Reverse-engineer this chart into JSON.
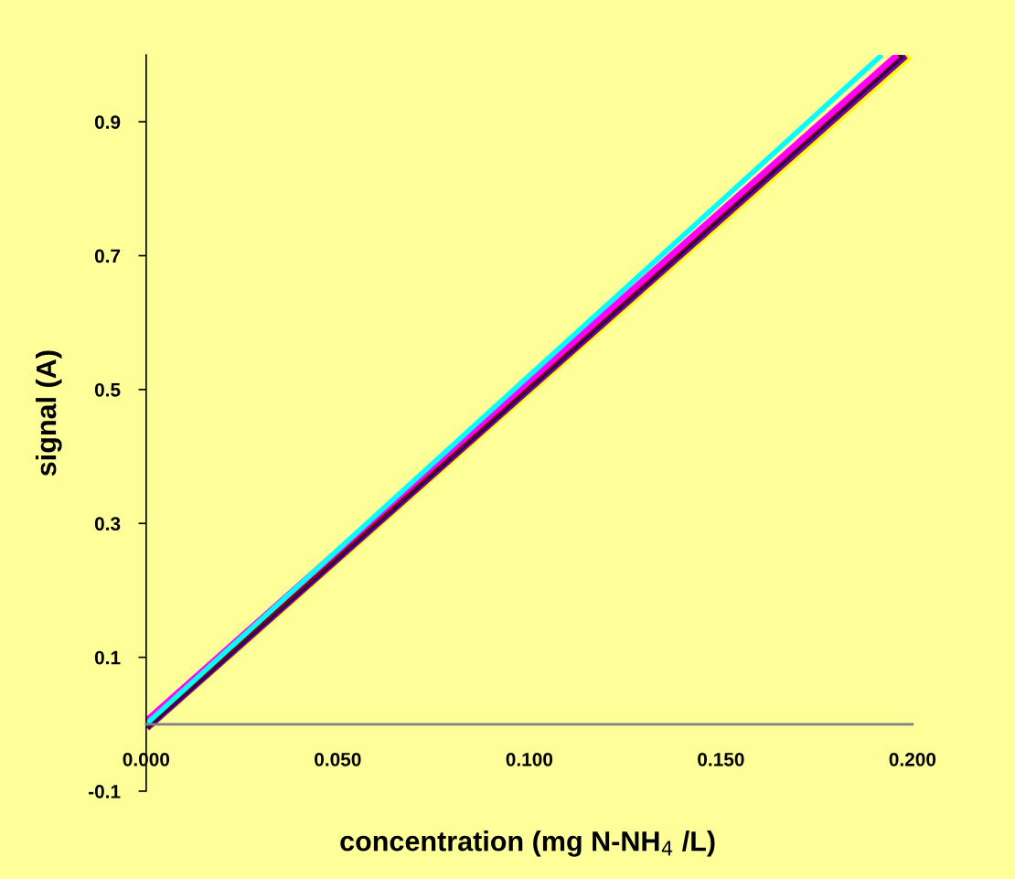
{
  "chart_data": {
    "type": "line",
    "xlabel": "concentration (mg N-NH$_{4}$ /L)",
    "ylabel": "signal (A)",
    "xlim": [
      0,
      0.2
    ],
    "ylim": [
      -0.1,
      1.0
    ],
    "xticks": [
      {
        "value": 0,
        "label": "0.000"
      },
      {
        "value": 0.05,
        "label": "0.050"
      },
      {
        "value": 0.1,
        "label": "0.100"
      },
      {
        "value": 0.15,
        "label": "0.150"
      },
      {
        "value": 0.2,
        "label": "0.200"
      }
    ],
    "yticks": [
      -0.1,
      0.1,
      0.3,
      0.5,
      0.7,
      0.9
    ],
    "grid": false,
    "marker": "none",
    "line_style": "solid",
    "series": [
      {
        "color": "#ffff00",
        "x": [
          0,
          0.199
        ],
        "values": [
          -0.004,
          1.0
        ]
      },
      {
        "color": "#800080",
        "x": [
          0,
          0.198
        ],
        "values": [
          -0.004,
          1.0
        ]
      },
      {
        "color": "#000080",
        "x": [
          0,
          0.197
        ],
        "values": [
          -0.002,
          1.0
        ]
      },
      {
        "color": "#800000",
        "x": [
          0,
          0.1965
        ],
        "values": [
          0.0,
          1.0
        ]
      },
      {
        "color": "#ff00ff",
        "x": [
          0,
          0.196
        ],
        "values": [
          0.005,
          1.0
        ]
      },
      {
        "color": "#00ffff",
        "x": [
          0,
          0.192
        ],
        "values": [
          0.0,
          1.0
        ]
      }
    ]
  }
}
